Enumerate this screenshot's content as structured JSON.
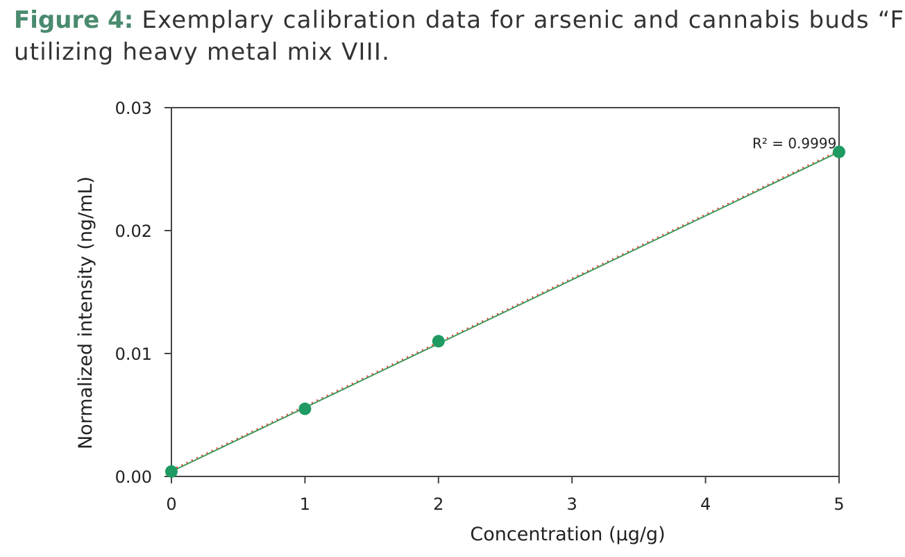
{
  "caption": {
    "label": "Figure 4:",
    "text_line1": " Exemplary calibration data for arsenic and cannabis buds “Finola”",
    "text_line2": "utilizing heavy metal mix VIII."
  },
  "colors": {
    "caption_label": "#4a8a6e",
    "points": "#1e9a62",
    "fit_line": "#3a9a5a",
    "dotted_line": "#e0443c",
    "axes": "#444444"
  },
  "chart_data": {
    "type": "scatter",
    "x": [
      0,
      1,
      2,
      5
    ],
    "y": [
      0.0004,
      0.0055,
      0.011,
      0.0264
    ],
    "xlabel": "Concentration (µg/g)",
    "ylabel": "Normalized intensity (ng/mL)",
    "xlim": [
      0,
      5
    ],
    "ylim": [
      0,
      0.03
    ],
    "xticks": [
      0,
      1,
      2,
      3,
      4,
      5
    ],
    "xtick_labels": [
      "0",
      "1",
      "2",
      "3",
      "4",
      "5"
    ],
    "yticks": [
      0,
      0.01,
      0.02,
      0.03
    ],
    "ytick_labels": [
      "0.00",
      "0.01",
      "0.02",
      "0.03"
    ],
    "fit": {
      "slope": 0.0052,
      "intercept": 0.0004
    },
    "annotation": "R² = 0.9999",
    "annotation_at": {
      "x": 4.35,
      "y": 0.0267
    },
    "grid": false
  }
}
